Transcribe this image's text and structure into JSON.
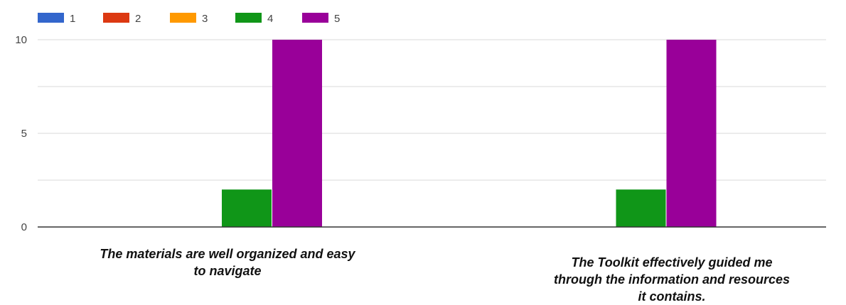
{
  "chart_data": {
    "type": "bar",
    "categories": [
      "The materials are well organized and easy\nto navigate",
      "The Toolkit effectively guided me\nthrough the information and resources\nit contains."
    ],
    "series": [
      {
        "name": "1",
        "color": "#3366cc",
        "values": [
          0,
          0
        ]
      },
      {
        "name": "2",
        "color": "#dc3912",
        "values": [
          0,
          0
        ]
      },
      {
        "name": "3",
        "color": "#ff9900",
        "values": [
          0,
          0
        ]
      },
      {
        "name": "4",
        "color": "#109618",
        "values": [
          2,
          2
        ]
      },
      {
        "name": "5",
        "color": "#990099",
        "values": [
          10,
          10
        ]
      }
    ],
    "y_ticks": [
      "0",
      "5",
      "10"
    ],
    "ylim": [
      0,
      10
    ],
    "grid": true,
    "legend_position": "top-left"
  }
}
